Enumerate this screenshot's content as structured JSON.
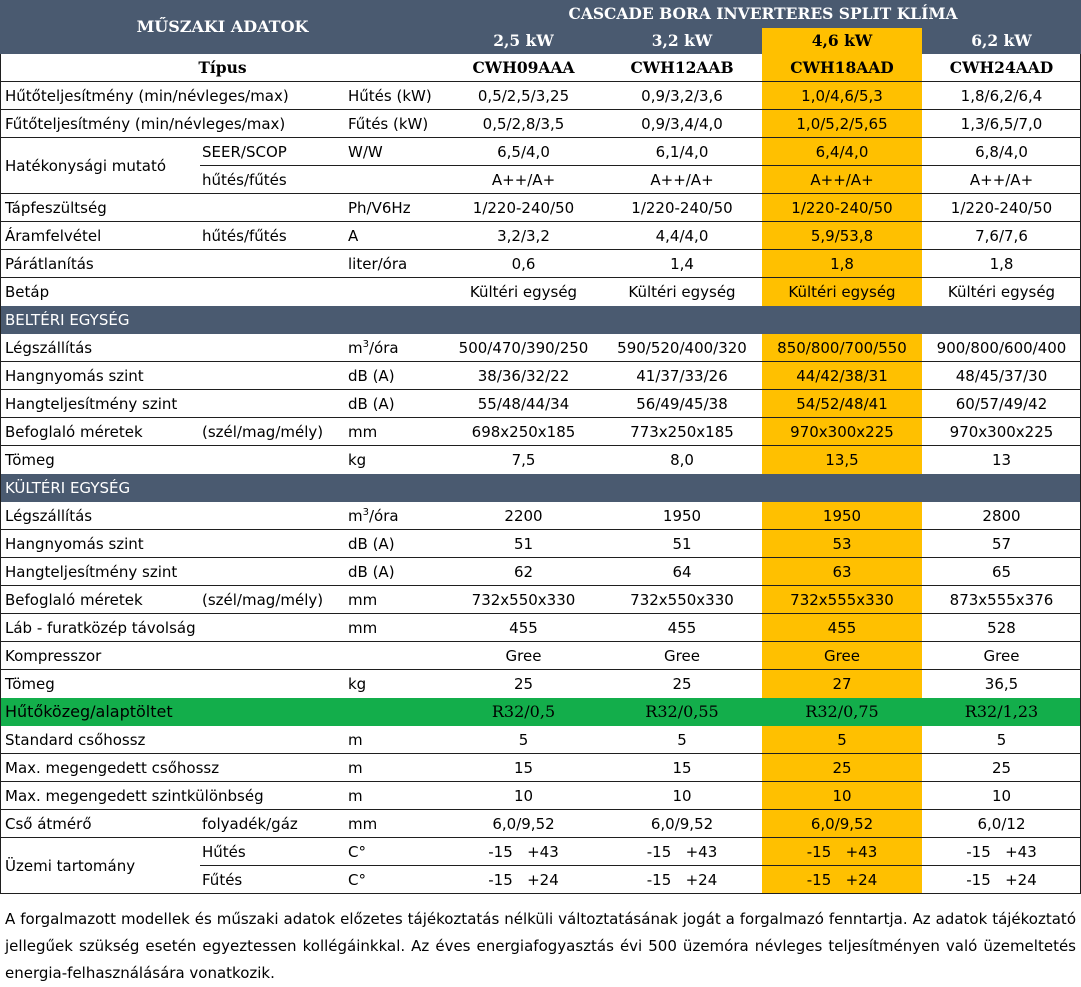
{
  "header": {
    "title": "MŰSZAKI ADATOK",
    "product": "CASCADE BORA INVERTERES SPLIT KLÍMA",
    "capacities": [
      "2,5 kW",
      "3,2 kW",
      "4,6 kW",
      "6,2 kW"
    ],
    "type_label": "Típus",
    "models": [
      "CWH09AAA",
      "CWH12AAB",
      "CWH18AAD",
      "CWH24AAD"
    ]
  },
  "general": {
    "cooling_capacity": {
      "label": "Hűtőteljesítmény (min/névleges/max)",
      "unit": "Hűtés (kW)",
      "values": [
        "0,5/2,5/3,25",
        "0,9/3,2/3,6",
        "1,0/4,6/5,3",
        "1,8/6,2/6,4"
      ]
    },
    "heating_capacity": {
      "label": "Fűtőteljesítmény (min/névleges/max)",
      "unit": "Fűtés (kW)",
      "values": [
        "0,5/2,8/3,5",
        "0,9/3,4/4,0",
        "1,0/5,2/5,65",
        "1,3/6,5/7,0"
      ]
    },
    "efficiency": {
      "label": "Hatékonysági mutató",
      "seer": {
        "sub": "SEER/SCOP",
        "unit": "W/W",
        "values": [
          "6,5/4,0",
          "6,1/4,0",
          "6,4/4,0",
          "6,8/4,0"
        ]
      },
      "class": {
        "sub": "hűtés/fűtés",
        "unit": "",
        "values": [
          "A++/A+",
          "A++/A+",
          "A++/A+",
          "A++/A+"
        ]
      }
    },
    "voltage": {
      "label": "Tápfeszültség",
      "unit": "Ph/V6Hz",
      "values": [
        "1/220-240/50",
        "1/220-240/50",
        "1/220-240/50",
        "1/220-240/50"
      ]
    },
    "current": {
      "label": "Áramfelvétel",
      "sub": "hűtés/fűtés",
      "unit": "A",
      "values": [
        "3,2/3,2",
        "4,4/4,0",
        "5,9/53,8",
        "7,6/7,6"
      ]
    },
    "dehumid": {
      "label": "Párátlanítás",
      "unit": "liter/óra",
      "values": [
        "0,6",
        "1,4",
        "1,8",
        "1,8"
      ]
    },
    "power_in": {
      "label": "Betáp",
      "unit": "",
      "values": [
        "Kültéri egység",
        "Kültéri egység",
        "Kültéri egység",
        "Kültéri egység"
      ]
    }
  },
  "indoor": {
    "section": "BELTÉRI EGYSÉG",
    "airflow": {
      "label": "Légszállítás",
      "unit_base": "m",
      "unit_sup": "3",
      "unit_rest": "/óra",
      "values": [
        "500/470/390/250",
        "590/520/400/320",
        "850/800/700/550",
        "900/800/600/400"
      ]
    },
    "spl": {
      "label": "Hangnyomás szint",
      "unit": "dB (A)",
      "values": [
        "38/36/32/22",
        "41/37/33/26",
        "44/42/38/31",
        "48/45/37/30"
      ]
    },
    "swl": {
      "label": "Hangteljesítmény szint",
      "unit": "dB (A)",
      "values": [
        "55/48/44/34",
        "56/49/45/38",
        "54/52/48/41",
        "60/57/49/42"
      ]
    },
    "dims": {
      "label": "Befoglaló méretek",
      "sub": "(szél/mag/mély)",
      "unit": "mm",
      "values": [
        "698x250x185",
        "773x250x185",
        "970x300x225",
        "970x300x225"
      ]
    },
    "weight": {
      "label": "Tömeg",
      "unit": "kg",
      "values": [
        "7,5",
        "8,0",
        "13,5",
        "13"
      ]
    }
  },
  "outdoor": {
    "section": "KÜLTÉRI EGYSÉG",
    "airflow": {
      "label": "Légszállítás",
      "unit_base": "m",
      "unit_sup": "3",
      "unit_rest": "/óra",
      "values": [
        "2200",
        "1950",
        "1950",
        "2800"
      ]
    },
    "spl": {
      "label": "Hangnyomás szint",
      "unit": "dB (A)",
      "values": [
        "51",
        "51",
        "53",
        "57"
      ]
    },
    "swl": {
      "label": "Hangteljesítmény szint",
      "unit": "dB (A)",
      "values": [
        "62",
        "64",
        "63",
        "65"
      ]
    },
    "dims": {
      "label": "Befoglaló méretek",
      "sub": "(szél/mag/mély)",
      "unit": "mm",
      "values": [
        "732x550x330",
        "732x550x330",
        "732x555x330",
        "873x555x376"
      ]
    },
    "foot": {
      "label": "Láb - furatközép távolság",
      "unit": "mm",
      "values": [
        "455",
        "455",
        "455",
        "528"
      ]
    },
    "compressor": {
      "label": "Kompresszor",
      "unit": "",
      "values": [
        "Gree",
        "Gree",
        "Gree",
        "Gree"
      ]
    },
    "weight": {
      "label": "Tömeg",
      "unit": "kg",
      "values": [
        "25",
        "25",
        "27",
        "36,5"
      ]
    }
  },
  "refrigerant": {
    "label": "Hűtőközeg/alaptöltet",
    "values": [
      "R32/0,5",
      "R32/0,55",
      "R32/0,75",
      "R32/1,23"
    ]
  },
  "piping": {
    "std": {
      "label": "Standard csőhossz",
      "unit": "m",
      "values": [
        "5",
        "5",
        "5",
        "5"
      ]
    },
    "max_len": {
      "label": "Max. megengedett csőhossz",
      "unit": "m",
      "values": [
        "15",
        "15",
        "25",
        "25"
      ]
    },
    "max_height": {
      "label": "Max. megengedett szintkülönbség",
      "unit": "m",
      "values": [
        "10",
        "10",
        "10",
        "10"
      ]
    },
    "diameter": {
      "label": "Cső átmérő",
      "sub": "folyadék/gáz",
      "unit": "mm",
      "values": [
        "6,0/9,52",
        "6,0/9,52",
        "6,0/9,52",
        "6,0/12"
      ]
    }
  },
  "operating": {
    "label": "Üzemi tartomány",
    "cooling": {
      "sub": "Hűtés",
      "unit": "C°",
      "min": "-15",
      "max": "+43"
    },
    "heating": {
      "sub": "Fűtés",
      "unit": "C°",
      "min": "-15",
      "max": "+24"
    }
  },
  "note": "A forgalmazott modellek és műszaki adatok előzetes tájékoztatás nélküli változtatásának jogát a forgalmazó fenntartja. Az adatok tájékoztató jellegűek szükség esetén egyeztessen kollégáinkkal. Az éves energiafogyasztás  évi 500 üzemóra névleges teljesítményen való üzemeltetés energia-felhasználására vonatkozik.",
  "highlight_color": "#FFC000",
  "section_color": "#4a5a70",
  "refrigerant_color": "#13ae4b"
}
